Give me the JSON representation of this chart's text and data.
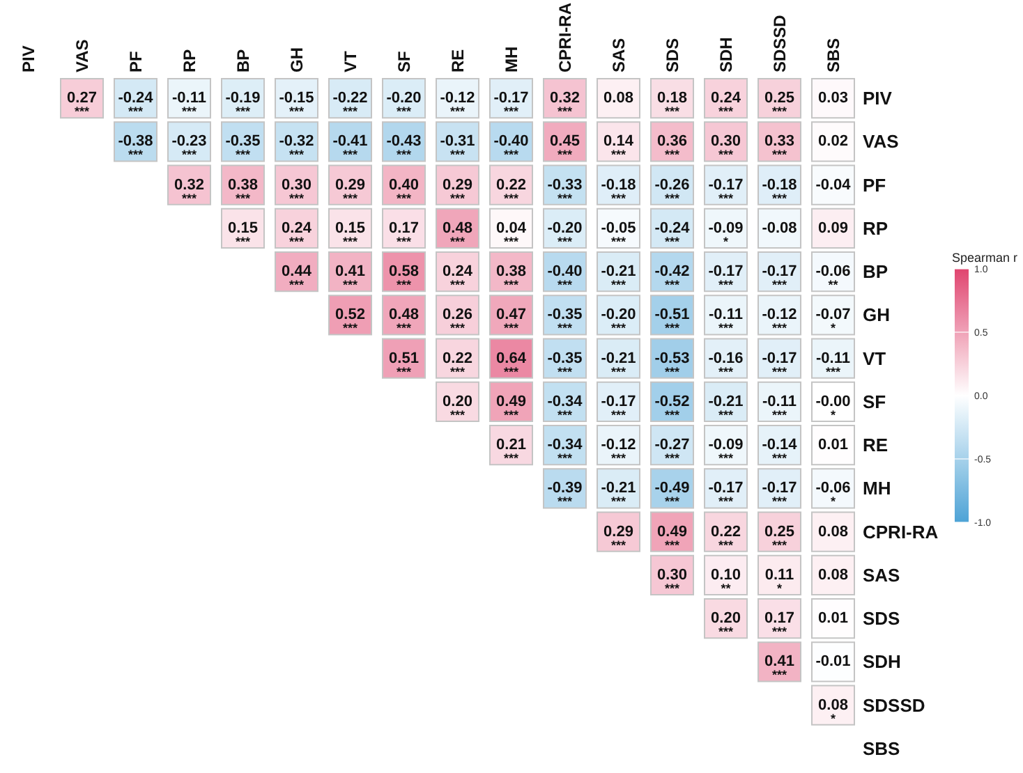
{
  "chart_data": {
    "type": "heatmap",
    "categories": [
      "PIV",
      "VAS",
      "PF",
      "RP",
      "BP",
      "GH",
      "VT",
      "SF",
      "RE",
      "MH",
      "CPRI-RA",
      "SAS",
      "SDS",
      "SDH",
      "SDSSD",
      "SBS"
    ],
    "y_categories": [
      "PIV",
      "VAS",
      "PF",
      "RP",
      "BP",
      "GH",
      "VT",
      "SF",
      "RE",
      "MH",
      "CPRI-RA",
      "SAS",
      "SDS",
      "SDH",
      "SDSSD",
      "SBS"
    ],
    "cells": [
      [
        null,
        0.27,
        -0.24,
        -0.11,
        -0.19,
        -0.15,
        -0.22,
        -0.2,
        -0.12,
        -0.17,
        0.32,
        0.08,
        0.18,
        0.24,
        0.25,
        0.03
      ],
      [
        null,
        null,
        -0.38,
        -0.23,
        -0.35,
        -0.32,
        -0.41,
        -0.43,
        -0.31,
        -0.4,
        0.45,
        0.14,
        0.36,
        0.3,
        0.33,
        0.02
      ],
      [
        null,
        null,
        null,
        0.32,
        0.38,
        0.3,
        0.29,
        0.4,
        0.29,
        0.22,
        -0.33,
        -0.18,
        -0.26,
        -0.17,
        -0.18,
        -0.04
      ],
      [
        null,
        null,
        null,
        null,
        0.15,
        0.24,
        0.15,
        0.17,
        0.48,
        0.04,
        -0.2,
        -0.05,
        -0.24,
        -0.09,
        -0.08,
        0.09
      ],
      [
        null,
        null,
        null,
        null,
        null,
        0.44,
        0.41,
        0.58,
        0.24,
        0.38,
        -0.4,
        -0.21,
        -0.42,
        -0.17,
        -0.17,
        -0.06
      ],
      [
        null,
        null,
        null,
        null,
        null,
        null,
        0.52,
        0.48,
        0.26,
        0.47,
        -0.35,
        -0.2,
        -0.51,
        -0.11,
        -0.12,
        -0.07
      ],
      [
        null,
        null,
        null,
        null,
        null,
        null,
        null,
        0.51,
        0.22,
        0.64,
        -0.35,
        -0.21,
        -0.53,
        -0.16,
        -0.17,
        -0.11
      ],
      [
        null,
        null,
        null,
        null,
        null,
        null,
        null,
        null,
        0.2,
        0.49,
        -0.34,
        -0.17,
        -0.52,
        -0.21,
        -0.11,
        0
      ],
      [
        null,
        null,
        null,
        null,
        null,
        null,
        null,
        null,
        null,
        0.21,
        -0.34,
        -0.12,
        -0.27,
        -0.09,
        -0.14,
        0.01
      ],
      [
        null,
        null,
        null,
        null,
        null,
        null,
        null,
        null,
        null,
        null,
        -0.39,
        -0.21,
        -0.49,
        -0.17,
        -0.17,
        -0.06
      ],
      [
        null,
        null,
        null,
        null,
        null,
        null,
        null,
        null,
        null,
        null,
        null,
        0.29,
        0.49,
        0.22,
        0.25,
        0.08
      ],
      [
        null,
        null,
        null,
        null,
        null,
        null,
        null,
        null,
        null,
        null,
        null,
        null,
        0.3,
        0.1,
        0.11,
        0.08
      ],
      [
        null,
        null,
        null,
        null,
        null,
        null,
        null,
        null,
        null,
        null,
        null,
        null,
        null,
        0.2,
        0.17,
        0.01
      ],
      [
        null,
        null,
        null,
        null,
        null,
        null,
        null,
        null,
        null,
        null,
        null,
        null,
        null,
        null,
        0.41,
        -0.01
      ],
      [
        null,
        null,
        null,
        null,
        null,
        null,
        null,
        null,
        null,
        null,
        null,
        null,
        null,
        null,
        null,
        0.08
      ],
      [
        null,
        null,
        null,
        null,
        null,
        null,
        null,
        null,
        null,
        null,
        null,
        null,
        null,
        null,
        null,
        null
      ]
    ],
    "cell_labels": [
      [
        null,
        "0.27\n***",
        "-0.24\n***",
        "-0.11\n***",
        "-0.19\n***",
        "-0.15\n***",
        "-0.22\n***",
        "-0.20\n***",
        "-0.12\n***",
        "-0.17\n***",
        "0.32\n***",
        "0.08",
        "0.18\n***",
        "0.24\n***",
        "0.25\n***",
        "0.03"
      ],
      [
        null,
        null,
        "-0.38\n***",
        "-0.23\n***",
        "-0.35\n***",
        "-0.32\n***",
        "-0.41\n***",
        "-0.43\n***",
        "-0.31\n***",
        "-0.40\n***",
        "0.45\n***",
        "0.14\n***",
        "0.36\n***",
        "0.30\n***",
        "0.33\n***",
        "0.02"
      ],
      [
        null,
        null,
        null,
        "0.32\n***",
        "0.38\n***",
        "0.30\n***",
        "0.29\n***",
        "0.40\n***",
        "0.29\n***",
        "0.22\n***",
        "-0.33\n***",
        "-0.18\n***",
        "-0.26\n***",
        "-0.17\n***",
        "-0.18\n***",
        "-0.04"
      ],
      [
        null,
        null,
        null,
        null,
        "0.15\n***",
        "0.24\n***",
        "0.15\n***",
        "0.17\n***",
        "0.48\n***",
        "0.04\n***",
        "-0.20\n***",
        "-0.05\n***",
        "-0.24\n***",
        "-0.09\n*",
        "-0.08",
        "0.09"
      ],
      [
        null,
        null,
        null,
        null,
        null,
        "0.44\n***",
        "0.41\n***",
        "0.58\n***",
        "0.24\n***",
        "0.38\n***",
        "-0.40\n***",
        "-0.21\n***",
        "-0.42\n***",
        "-0.17\n***",
        "-0.17\n***",
        "-0.06\n**"
      ],
      [
        null,
        null,
        null,
        null,
        null,
        null,
        "0.52\n***",
        "0.48\n***",
        "0.26\n***",
        "0.47\n***",
        "-0.35\n***",
        "-0.20\n***",
        "-0.51\n***",
        "-0.11\n***",
        "-0.12\n***",
        "-0.07\n*"
      ],
      [
        null,
        null,
        null,
        null,
        null,
        null,
        null,
        "0.51\n***",
        "0.22\n***",
        "0.64\n***",
        "-0.35\n***",
        "-0.21\n***",
        "-0.53\n***",
        "-0.16\n***",
        "-0.17\n***",
        "-0.11\n***"
      ],
      [
        null,
        null,
        null,
        null,
        null,
        null,
        null,
        null,
        "0.20\n***",
        "0.49\n***",
        "-0.34\n***",
        "-0.17\n***",
        "-0.52\n***",
        "-0.21\n***",
        "-0.11\n***",
        "-0.00\n*"
      ],
      [
        null,
        null,
        null,
        null,
        null,
        null,
        null,
        null,
        null,
        "0.21\n***",
        "-0.34\n***",
        "-0.12\n***",
        "-0.27\n***",
        "-0.09\n***",
        "-0.14\n***",
        "0.01"
      ],
      [
        null,
        null,
        null,
        null,
        null,
        null,
        null,
        null,
        null,
        null,
        "-0.39\n***",
        "-0.21\n***",
        "-0.49\n***",
        "-0.17\n***",
        "-0.17\n***",
        "-0.06\n*"
      ],
      [
        null,
        null,
        null,
        null,
        null,
        null,
        null,
        null,
        null,
        null,
        null,
        "0.29\n***",
        "0.49\n***",
        "0.22\n***",
        "0.25\n***",
        "0.08"
      ],
      [
        null,
        null,
        null,
        null,
        null,
        null,
        null,
        null,
        null,
        null,
        null,
        null,
        "0.30\n***",
        "0.10\n**",
        "0.11\n*",
        "0.08"
      ],
      [
        null,
        null,
        null,
        null,
        null,
        null,
        null,
        null,
        null,
        null,
        null,
        null,
        null,
        "0.20\n***",
        "0.17\n***",
        "0.01"
      ],
      [
        null,
        null,
        null,
        null,
        null,
        null,
        null,
        null,
        null,
        null,
        null,
        null,
        null,
        null,
        "0.41\n***",
        "-0.01"
      ],
      [
        null,
        null,
        null,
        null,
        null,
        null,
        null,
        null,
        null,
        null,
        null,
        null,
        null,
        null,
        null,
        "0.08\n*"
      ],
      [
        null,
        null,
        null,
        null,
        null,
        null,
        null,
        null,
        null,
        null,
        null,
        null,
        null,
        null,
        null,
        null
      ]
    ],
    "clim": [
      -1,
      1
    ],
    "cticks": [
      {
        "value": -1,
        "label": "-1.0"
      },
      {
        "value": -0.5,
        "label": "-0.5"
      },
      {
        "value": 0,
        "label": "0.0"
      },
      {
        "value": 0.5,
        "label": "0.5"
      },
      {
        "value": 1,
        "label": "1.0"
      }
    ],
    "clabel": "Spearman r"
  }
}
